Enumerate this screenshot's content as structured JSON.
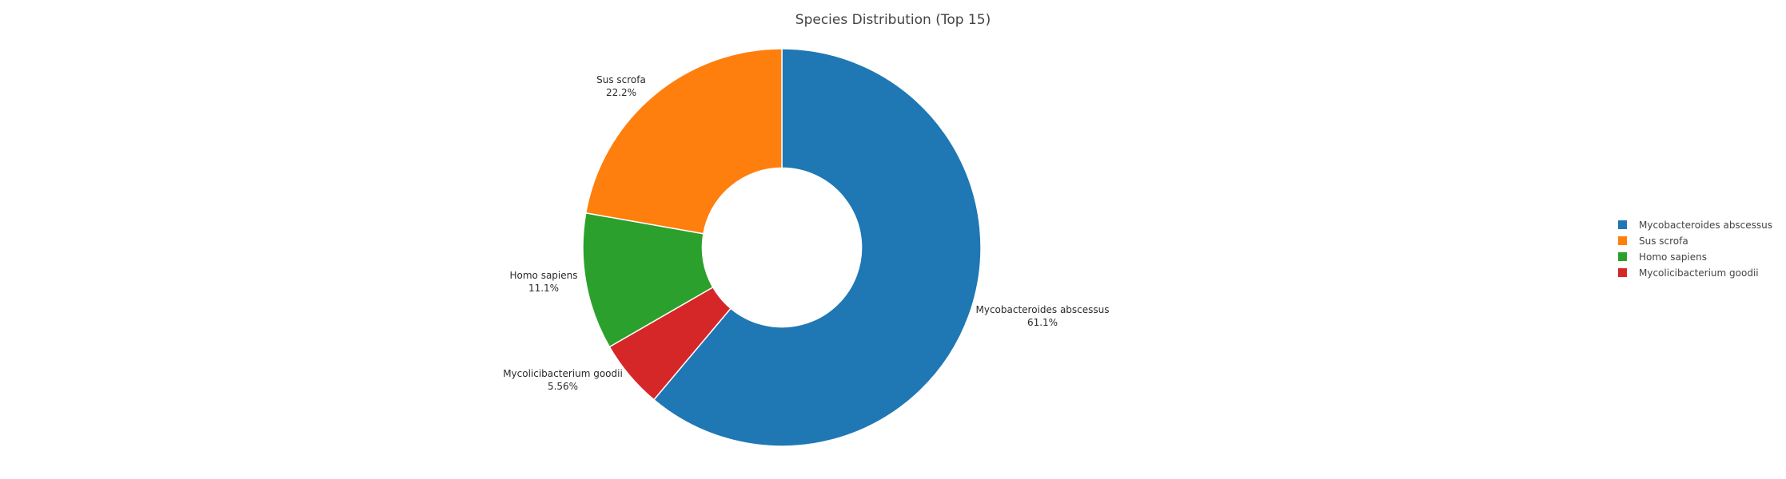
{
  "chart_data": {
    "type": "pie",
    "hole": 0.4,
    "title": "Species Distribution (Top 15)",
    "direction": "clockwise",
    "rotation_start": "top",
    "legend_position": "right",
    "slices": [
      {
        "label": "Mycobacteroides abscessus",
        "value": 11,
        "percent_text": "61.1%",
        "color": "#1f77b4"
      },
      {
        "label": "Sus scrofa",
        "value": 4,
        "percent_text": "22.2%",
        "color": "#ff7f0e"
      },
      {
        "label": "Homo sapiens",
        "value": 2,
        "percent_text": "11.1%",
        "color": "#2ca02c"
      },
      {
        "label": "Mycolicibacterium goodii",
        "value": 1,
        "percent_text": "5.56%",
        "color": "#d62728"
      }
    ]
  }
}
